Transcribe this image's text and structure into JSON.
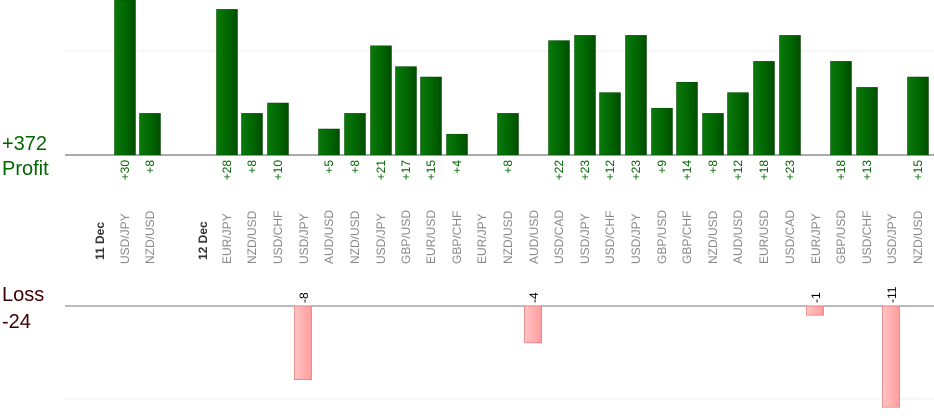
{
  "summary": {
    "profit_total": "+372",
    "profit_label": "Profit",
    "loss_label": "Loss",
    "loss_total": "-24"
  },
  "colors": {
    "profit": "#006600",
    "profit_dark": "#004400",
    "loss": "#ff9999",
    "loss_border": "#e08080",
    "pair_label": "#888888",
    "date_label": "#333333"
  },
  "chart_data": {
    "type": "bar",
    "title": "",
    "xlabel": "",
    "ylabel": "",
    "legend": "none",
    "grid": true,
    "bars": [
      {
        "group": "11 Dec",
        "pair": "USD/JPY",
        "value": 30,
        "label": "+30"
      },
      {
        "group": "11 Dec",
        "pair": "NZD/USD",
        "value": 8,
        "label": "+8"
      },
      {
        "group": "12 Dec",
        "pair": "EUR/JPY",
        "value": 28,
        "label": "+28"
      },
      {
        "group": "12 Dec",
        "pair": "NZD/USD",
        "value": 8,
        "label": "+8"
      },
      {
        "group": "12 Dec",
        "pair": "USD/CHF",
        "value": 10,
        "label": "+10"
      },
      {
        "group": "12 Dec",
        "pair": "USD/JPY",
        "value": -8,
        "label": "-8"
      },
      {
        "group": "12 Dec",
        "pair": "AUD/USD",
        "value": 5,
        "label": "+5"
      },
      {
        "group": "12 Dec",
        "pair": "NZD/USD",
        "value": 8,
        "label": "+8"
      },
      {
        "group": "12 Dec",
        "pair": "USD/JPY",
        "value": 21,
        "label": "+21"
      },
      {
        "group": "12 Dec",
        "pair": "GBP/USD",
        "value": 17,
        "label": "+17"
      },
      {
        "group": "12 Dec",
        "pair": "EUR/USD",
        "value": 15,
        "label": "+15"
      },
      {
        "group": "12 Dec",
        "pair": "GBP/CHF",
        "value": 4,
        "label": "+4"
      },
      {
        "group": "12 Dec",
        "pair": "EUR/JPY",
        "value": 0,
        "label": ""
      },
      {
        "group": "12 Dec",
        "pair": "NZD/USD",
        "value": 8,
        "label": "+8"
      },
      {
        "group": "12 Dec",
        "pair": "AUD/USD",
        "value": -4,
        "label": "-4"
      },
      {
        "group": "12 Dec",
        "pair": "USD/CAD",
        "value": 22,
        "label": "+22"
      },
      {
        "group": "12 Dec",
        "pair": "USD/JPY",
        "value": 23,
        "label": "+23"
      },
      {
        "group": "12 Dec",
        "pair": "USD/CHF",
        "value": 12,
        "label": "+12"
      },
      {
        "group": "12 Dec",
        "pair": "USD/JPY",
        "value": 23,
        "label": "+23"
      },
      {
        "group": "12 Dec",
        "pair": "GBP/USD",
        "value": 9,
        "label": "+9"
      },
      {
        "group": "12 Dec",
        "pair": "GBP/CHF",
        "value": 14,
        "label": "+14"
      },
      {
        "group": "12 Dec",
        "pair": "NZD/USD",
        "value": 8,
        "label": "+8"
      },
      {
        "group": "12 Dec",
        "pair": "AUD/USD",
        "value": 12,
        "label": "+12"
      },
      {
        "group": "12 Dec",
        "pair": "EUR/USD",
        "value": 18,
        "label": "+18"
      },
      {
        "group": "12 Dec",
        "pair": "USD/CAD",
        "value": 23,
        "label": "+23"
      },
      {
        "group": "12 Dec",
        "pair": "EUR/JPY",
        "value": -1,
        "label": "-1"
      },
      {
        "group": "12 Dec",
        "pair": "GBP/USD",
        "value": 18,
        "label": "+18"
      },
      {
        "group": "12 Dec",
        "pair": "USD/CHF",
        "value": 13,
        "label": "+13"
      },
      {
        "group": "12 Dec",
        "pair": "USD/JPY",
        "value": -11,
        "label": "-11"
      },
      {
        "group": "12 Dec",
        "pair": "NZD/USD",
        "value": 15,
        "label": "+15"
      }
    ]
  }
}
